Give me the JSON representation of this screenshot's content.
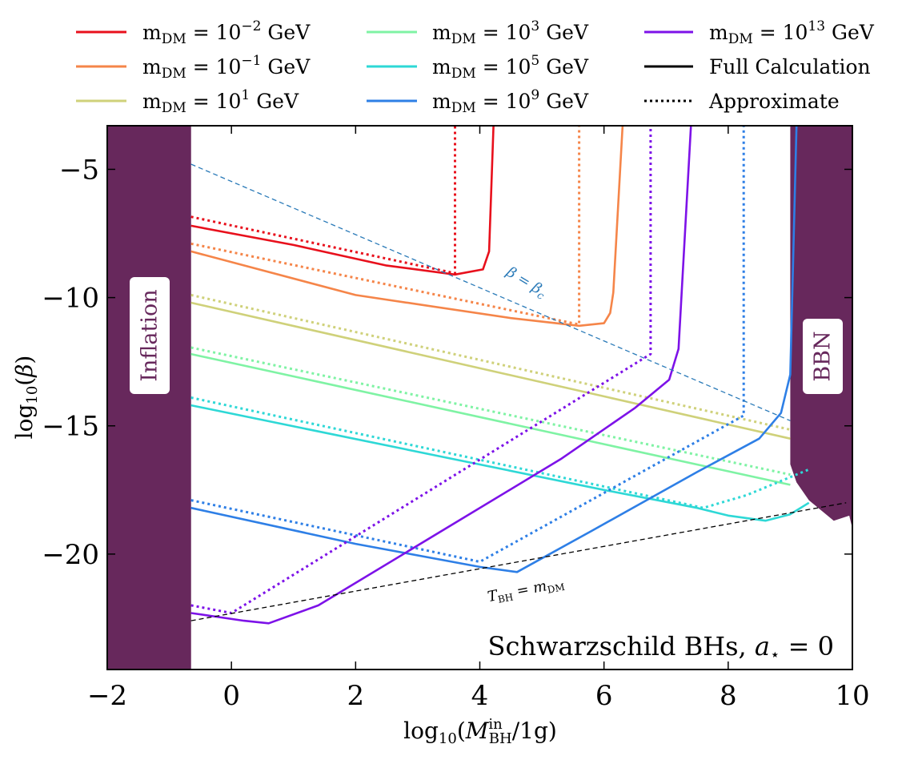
{
  "chart_data": {
    "type": "line",
    "title": "",
    "xlabel": "log10(M_BH^in/1g)",
    "ylabel": "log10(β)",
    "xlim": [
      -2,
      10
    ],
    "ylim": [
      -24.5,
      -3.3
    ],
    "x_ticks": [
      -2,
      0,
      2,
      4,
      6,
      8,
      10
    ],
    "x_tick_labels": [
      "−2",
      "0",
      "2",
      "4",
      "6",
      "8",
      "10"
    ],
    "y_ticks": [
      -5,
      -10,
      -15,
      -20
    ],
    "y_tick_labels": [
      "−5",
      "−10",
      "−15",
      "−20"
    ],
    "grid": false,
    "legend_position": "top, outside plot, 3 columns",
    "legend": [
      {
        "label": "m_DM = 10^−2 GeV",
        "color": "#e8101c",
        "style": "solid"
      },
      {
        "label": "m_DM = 10^−1 GeV",
        "color": "#f58549",
        "style": "solid"
      },
      {
        "label": "m_DM = 10^1 GeV",
        "color": "#cfd17a",
        "style": "solid"
      },
      {
        "label": "m_DM = 10^3 GeV",
        "color": "#7ff3a4",
        "style": "solid"
      },
      {
        "label": "m_DM = 10^5 GeV",
        "color": "#2ed8d6",
        "style": "solid"
      },
      {
        "label": "m_DM = 10^9 GeV",
        "color": "#2e7fe6",
        "style": "solid"
      },
      {
        "label": "m_DM = 10^13 GeV",
        "color": "#7d12e8",
        "style": "solid"
      },
      {
        "label": "Full Calculation",
        "color": "#000000",
        "style": "solid"
      },
      {
        "label": "Approximate",
        "color": "#000000",
        "style": "dotted"
      }
    ],
    "series": [
      {
        "name": "m_DM = 10^−2 GeV (full)",
        "color": "#e8101c",
        "style": "solid",
        "points": [
          [
            -0.65,
            -7.2
          ],
          [
            1.0,
            -7.95
          ],
          [
            2.5,
            -8.75
          ],
          [
            3.6,
            -9.1
          ],
          [
            4.05,
            -8.9
          ],
          [
            4.15,
            -8.2
          ],
          [
            4.22,
            -3.3
          ]
        ]
      },
      {
        "name": "m_DM = 10^−2 GeV (approx)",
        "color": "#e8101c",
        "style": "dotted",
        "points": [
          [
            -0.65,
            -6.85
          ],
          [
            3.6,
            -9.05
          ],
          [
            3.6,
            -3.3
          ]
        ]
      },
      {
        "name": "m_DM = 10^−1 GeV (full)",
        "color": "#f58549",
        "style": "solid",
        "points": [
          [
            -0.65,
            -8.2
          ],
          [
            2.0,
            -9.9
          ],
          [
            4.5,
            -10.8
          ],
          [
            5.6,
            -11.1
          ],
          [
            6.0,
            -11.0
          ],
          [
            6.1,
            -10.6
          ],
          [
            6.15,
            -9.8
          ],
          [
            6.3,
            -3.3
          ]
        ]
      },
      {
        "name": "m_DM = 10^−1 GeV (approx)",
        "color": "#f58549",
        "style": "dotted",
        "points": [
          [
            -0.65,
            -7.9
          ],
          [
            5.6,
            -11.05
          ],
          [
            5.6,
            -3.3
          ]
        ]
      },
      {
        "name": "m_DM = 10^1 GeV (full)",
        "color": "#cfd17a",
        "style": "solid",
        "points": [
          [
            -0.65,
            -10.2
          ],
          [
            9.0,
            -15.5
          ]
        ]
      },
      {
        "name": "m_DM = 10^1 GeV (approx)",
        "color": "#cfd17a",
        "style": "dotted",
        "points": [
          [
            -0.65,
            -9.9
          ],
          [
            9.0,
            -15.15
          ]
        ]
      },
      {
        "name": "m_DM = 10^3 GeV (full)",
        "color": "#7ff3a4",
        "style": "solid",
        "points": [
          [
            -0.65,
            -12.2
          ],
          [
            9.0,
            -17.3
          ]
        ]
      },
      {
        "name": "m_DM = 10^3 GeV (approx)",
        "color": "#7ff3a4",
        "style": "dotted",
        "points": [
          [
            -0.65,
            -11.95
          ],
          [
            9.0,
            -16.9
          ]
        ]
      },
      {
        "name": "m_DM = 10^5 GeV (full)",
        "color": "#2ed8d6",
        "style": "solid",
        "points": [
          [
            -0.65,
            -14.2
          ],
          [
            6.0,
            -17.5
          ],
          [
            7.5,
            -18.2
          ],
          [
            8.0,
            -18.5
          ],
          [
            8.6,
            -18.7
          ],
          [
            9.0,
            -18.45
          ],
          [
            9.3,
            -18.0
          ]
        ]
      },
      {
        "name": "m_DM = 10^5 GeV (approx)",
        "color": "#2ed8d6",
        "style": "dotted",
        "points": [
          [
            -0.65,
            -13.9
          ],
          [
            7.6,
            -18.2
          ],
          [
            8.3,
            -17.7
          ],
          [
            9.3,
            -16.7
          ]
        ]
      },
      {
        "name": "m_DM = 10^9 GeV (full)",
        "color": "#2e7fe6",
        "style": "solid",
        "points": [
          [
            -0.65,
            -18.2
          ],
          [
            2.0,
            -19.6
          ],
          [
            4.0,
            -20.5
          ],
          [
            4.6,
            -20.7
          ],
          [
            5.8,
            -19.1
          ],
          [
            7.5,
            -16.8
          ],
          [
            8.5,
            -15.5
          ],
          [
            8.85,
            -14.5
          ],
          [
            9.0,
            -13.0
          ],
          [
            9.1,
            -3.3
          ]
        ]
      },
      {
        "name": "m_DM = 10^9 GeV (approx)",
        "color": "#2e7fe6",
        "style": "dotted",
        "points": [
          [
            -0.65,
            -17.9
          ],
          [
            4.0,
            -20.3
          ],
          [
            8.25,
            -14.6
          ],
          [
            8.25,
            -3.3
          ]
        ]
      },
      {
        "name": "m_DM = 10^13 GeV (full)",
        "color": "#7d12e8",
        "style": "solid",
        "points": [
          [
            -0.65,
            -22.3
          ],
          [
            0.2,
            -22.6
          ],
          [
            0.6,
            -22.7
          ],
          [
            1.4,
            -22.0
          ],
          [
            5.3,
            -16.3
          ],
          [
            6.5,
            -14.3
          ],
          [
            7.05,
            -13.2
          ],
          [
            7.2,
            -12.0
          ],
          [
            7.4,
            -3.3
          ]
        ]
      },
      {
        "name": "m_DM = 10^13 GeV (approx)",
        "color": "#7d12e8",
        "style": "dotted",
        "points": [
          [
            -0.65,
            -22.0
          ],
          [
            0.0,
            -22.3
          ],
          [
            6.75,
            -12.2
          ],
          [
            6.75,
            -3.3
          ]
        ]
      },
      {
        "name": "β = β_c",
        "color": "#2a7ab8",
        "style": "dashed",
        "points": [
          [
            -0.65,
            -4.8
          ],
          [
            9.0,
            -14.8
          ]
        ]
      },
      {
        "name": "T_BH = m_DM",
        "color": "#000000",
        "style": "dashed",
        "points": [
          [
            -0.65,
            -22.6
          ],
          [
            9.9,
            -18.0
          ]
        ]
      }
    ],
    "shaded_regions": [
      {
        "label": "Inflation",
        "color": "#67285c",
        "x_range": [
          -2,
          -0.65
        ]
      },
      {
        "label": "BBN",
        "color": "#67285c",
        "x_start": 9.0
      }
    ],
    "annotations": [
      {
        "text": "β = β_c",
        "x": 4.3,
        "y": -10.3
      },
      {
        "text": "T_BH = m_DM",
        "x": 3.9,
        "y": -22.0
      },
      {
        "text": "Schwarzschild BHs, a⋆ = 0",
        "x": 9.8,
        "y": -23.7
      }
    ]
  }
}
